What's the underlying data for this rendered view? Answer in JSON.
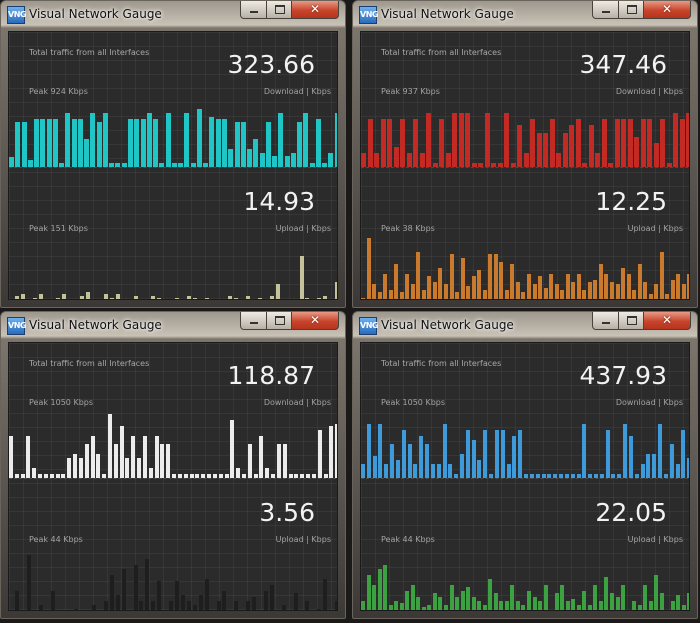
{
  "windows": [
    {
      "title": "Visual Network Gauge",
      "icon": "vng-app-icon",
      "header": "Total traffic from all Interfaces",
      "download": {
        "value": "323.66",
        "peak": "Peak 924 Kbps",
        "unit": "Download | Kbps"
      },
      "upload": {
        "value": "14.93",
        "peak": "Peak 151 Kbps",
        "unit": "Upload | Kbps"
      },
      "download_color": "#20c5c5",
      "upload_color": "#c4c29a",
      "chart_data": {
        "type": "bar",
        "download_values": [
          10,
          45,
          45,
          7,
          48,
          48,
          48,
          48,
          4,
          54,
          48,
          48,
          28,
          54,
          45,
          54,
          4,
          4,
          4,
          48,
          48,
          48,
          54,
          48,
          4,
          54,
          4,
          4,
          54,
          4,
          58,
          4,
          50,
          48,
          48,
          18,
          45,
          45,
          18,
          28,
          14,
          45,
          11,
          54,
          11,
          14,
          45,
          54,
          4,
          48,
          4,
          14,
          54
        ],
        "upload_values": [
          2,
          8,
          10,
          4,
          6,
          10,
          2,
          4,
          6,
          10,
          4,
          4,
          8,
          12,
          2,
          4,
          10,
          6,
          10,
          2,
          4,
          8,
          2,
          4,
          8,
          6,
          4,
          2,
          6,
          4,
          8,
          6,
          4,
          6,
          4,
          2,
          4,
          8,
          6,
          4,
          8,
          4,
          6,
          4,
          8,
          20,
          4,
          4,
          4,
          48,
          6,
          4,
          6,
          8,
          4,
          22
        ]
      }
    },
    {
      "title": "Visual Network Gauge",
      "icon": "vng-app-icon",
      "header": "Total traffic from all Interfaces",
      "download": {
        "value": "347.46",
        "peak": "Peak 937 Kbps",
        "unit": "Download | Kbps"
      },
      "upload": {
        "value": "12.25",
        "peak": "Peak 38 Kbps",
        "unit": "Upload | Kbps"
      },
      "download_color": "#c42a24",
      "upload_color": "#c97a2c",
      "chart_data": {
        "type": "bar",
        "download_values": [
          14,
          48,
          14,
          48,
          48,
          20,
          48,
          14,
          48,
          14,
          54,
          4,
          48,
          14,
          54,
          54,
          54,
          4,
          4,
          54,
          4,
          4,
          54,
          4,
          42,
          14,
          48,
          34,
          34,
          48,
          14,
          34,
          42,
          48,
          4,
          42,
          14,
          48,
          4,
          48,
          48,
          48,
          30,
          48,
          48,
          24,
          48,
          4,
          54,
          48,
          54
        ],
        "upload_values": [
          6,
          66,
          20,
          12,
          30,
          14,
          40,
          12,
          30,
          20,
          52,
          14,
          28,
          22,
          36,
          20,
          50,
          12,
          46,
          18,
          28,
          34,
          14,
          50,
          50,
          42,
          14,
          40,
          22,
          12,
          30,
          20,
          28,
          16,
          30,
          20,
          14,
          30,
          22,
          30,
          14,
          22,
          24,
          40,
          30,
          22,
          20,
          36,
          30,
          14,
          40,
          22,
          10,
          20,
          52,
          10,
          24,
          30,
          20,
          30
        ]
      }
    },
    {
      "title": "Visual Network Gauge",
      "icon": "vng-app-icon",
      "header": "Total traffic from all Interfaces",
      "download": {
        "value": "118.87",
        "peak": "Peak 1050 Kbps",
        "unit": "Download | Kbps"
      },
      "upload": {
        "value": "3.56",
        "peak": "Peak 44 Kbps",
        "unit": "Upload | Kbps"
      },
      "download_color": "#ececec",
      "upload_color": "#1e1e1e",
      "chart_data": {
        "type": "bar",
        "download_values": [
          42,
          4,
          4,
          42,
          10,
          4,
          4,
          4,
          4,
          4,
          20,
          24,
          20,
          34,
          42,
          24,
          4,
          64,
          34,
          52,
          20,
          42,
          20,
          42,
          10,
          42,
          34,
          34,
          4,
          4,
          4,
          4,
          4,
          4,
          4,
          4,
          4,
          4,
          58,
          10,
          4,
          34,
          4,
          42,
          10,
          4,
          34,
          34,
          4,
          4,
          4,
          4,
          4,
          48,
          4,
          52,
          54
        ],
        "upload_values": [
          2,
          24,
          4,
          60,
          2,
          10,
          4,
          24,
          4,
          2,
          2,
          6,
          2,
          2,
          10,
          2,
          14,
          40,
          20,
          46,
          2,
          50,
          14,
          56,
          14,
          34,
          2,
          14,
          34,
          20,
          14,
          10,
          20,
          36,
          2,
          14,
          24,
          2,
          14,
          2,
          14,
          18,
          2,
          24,
          30,
          2,
          10,
          2,
          22,
          2,
          14,
          2,
          6,
          36,
          2,
          14
        ]
      }
    },
    {
      "title": "Visual Network Gauge",
      "icon": "vng-app-icon",
      "header": "Total traffic from all Interfaces",
      "download": {
        "value": "437.93",
        "peak": "Peak 1050 Kbps",
        "unit": "Download | Kbps"
      },
      "upload": {
        "value": "22.05",
        "peak": "Peak 44 Kbps",
        "unit": "Upload | Kbps"
      },
      "download_color": "#3f9ad9",
      "upload_color": "#3ca241",
      "chart_data": {
        "type": "bar",
        "download_values": [
          14,
          54,
          22,
          54,
          14,
          34,
          18,
          48,
          34,
          14,
          42,
          34,
          14,
          14,
          54,
          14,
          4,
          24,
          48,
          38,
          18,
          48,
          4,
          48,
          48,
          14,
          42,
          48,
          4,
          4,
          4,
          4,
          4,
          4,
          4,
          4,
          4,
          4,
          54,
          4,
          4,
          4,
          48,
          4,
          4,
          54,
          42,
          4,
          14,
          24,
          24,
          54,
          4,
          34,
          14,
          48,
          20
        ],
        "upload_values": [
          14,
          40,
          30,
          46,
          50,
          10,
          14,
          12,
          24,
          30,
          18,
          8,
          10,
          22,
          18,
          10,
          30,
          18,
          24,
          28,
          18,
          14,
          10,
          36,
          22,
          14,
          14,
          30,
          14,
          10,
          24,
          18,
          14,
          30,
          4,
          22,
          30,
          14,
          16,
          10,
          24,
          10,
          30,
          14,
          38,
          22,
          18,
          30,
          4,
          14,
          10,
          30,
          14,
          40,
          22,
          4,
          14,
          20,
          10,
          22
        ]
      }
    }
  ]
}
